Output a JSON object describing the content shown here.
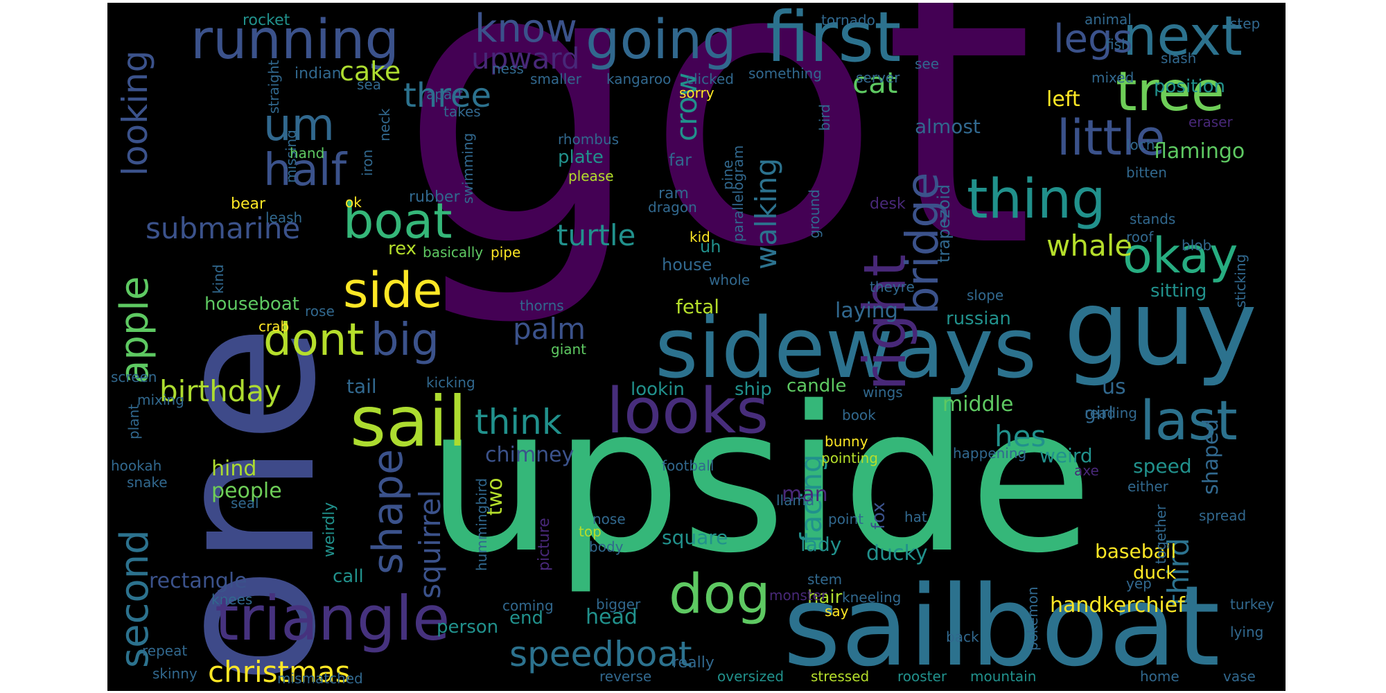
{
  "palette": [
    "#440154",
    "#472d7b",
    "#3b528b",
    "#2c728e",
    "#21918c",
    "#28ae80",
    "#5ec962",
    "#addc30",
    "#fde725"
  ],
  "words": [
    {
      "text": "got",
      "color": "#440154"
    },
    {
      "text": "upside",
      "color": "#35b779"
    },
    {
      "text": "one",
      "color": "#3e4a89"
    },
    {
      "text": "sailboat",
      "color": "#2c728e"
    },
    {
      "text": "guy",
      "color": "#2c728e"
    },
    {
      "text": "sideways",
      "color": "#2c728e"
    },
    {
      "text": "first",
      "color": "#2c728e"
    },
    {
      "text": "going",
      "color": "#31688e"
    },
    {
      "text": "running",
      "color": "#3b528b"
    },
    {
      "text": "next",
      "color": "#2c728e"
    },
    {
      "text": "tree",
      "color": "#6ece58"
    },
    {
      "text": "little",
      "color": "#3b528b"
    },
    {
      "text": "know",
      "color": "#3b528b"
    },
    {
      "text": "legs",
      "color": "#3b528b"
    },
    {
      "text": "thing",
      "color": "#21918c"
    },
    {
      "text": "okay",
      "color": "#27ad81"
    },
    {
      "text": "sail",
      "color": "#addc30"
    },
    {
      "text": "looks",
      "color": "#472d7b"
    },
    {
      "text": "last",
      "color": "#2c728e"
    },
    {
      "text": "triangle",
      "color": "#46327e"
    },
    {
      "text": "dog",
      "color": "#5ec962"
    },
    {
      "text": "boat",
      "color": "#35b779"
    },
    {
      "text": "side",
      "color": "#fde725"
    },
    {
      "text": "dont",
      "color": "#b5de2b"
    },
    {
      "text": "big",
      "color": "#3b528b"
    },
    {
      "text": "half",
      "color": "#3b528b"
    },
    {
      "text": "um",
      "color": "#31688e"
    },
    {
      "text": "three",
      "color": "#2c728e"
    },
    {
      "text": "think",
      "color": "#21918c"
    },
    {
      "text": "speedboat",
      "color": "#2c728e"
    },
    {
      "text": "christmas",
      "color": "#fde725"
    },
    {
      "text": "apple",
      "color": "#5ec962"
    },
    {
      "text": "second",
      "color": "#2c728e"
    },
    {
      "text": "right",
      "color": "#482878"
    },
    {
      "text": "bridge",
      "color": "#3b528b"
    },
    {
      "text": "shape",
      "color": "#3b528b"
    },
    {
      "text": "looking",
      "color": "#3b528b"
    },
    {
      "text": "submarine",
      "color": "#3b528b"
    },
    {
      "text": "birthday",
      "color": "#addc30"
    },
    {
      "text": "upward",
      "color": "#482878"
    },
    {
      "text": "cake",
      "color": "#addc30"
    },
    {
      "text": "cat",
      "color": "#5ec962"
    },
    {
      "text": "turtle",
      "color": "#21918c"
    },
    {
      "text": "crow",
      "color": "#21918c"
    },
    {
      "text": "whale",
      "color": "#b5de2b"
    },
    {
      "text": "walking",
      "color": "#2c728e"
    },
    {
      "text": "palm",
      "color": "#3b528b"
    },
    {
      "text": "facing",
      "color": "#21918c"
    },
    {
      "text": "hes",
      "color": "#21918c"
    },
    {
      "text": "third",
      "color": "#2c728e"
    },
    {
      "text": "shaped",
      "color": "#31688e"
    },
    {
      "text": "squirrel",
      "color": "#3b528b"
    },
    {
      "text": "chimney",
      "color": "#3b528b"
    },
    {
      "text": "rectangle",
      "color": "#3b528b"
    },
    {
      "text": "houseboat",
      "color": "#5ec962"
    },
    {
      "text": "handkerchief",
      "color": "#fde725"
    },
    {
      "text": "baseball",
      "color": "#fde725"
    },
    {
      "text": "flamingo",
      "color": "#5ec962"
    },
    {
      "text": "left",
      "color": "#fde725"
    },
    {
      "text": "position",
      "color": "#21918c"
    },
    {
      "text": "almost",
      "color": "#31688e"
    },
    {
      "text": "sitting",
      "color": "#21918c"
    },
    {
      "text": "russian",
      "color": "#21918c"
    },
    {
      "text": "middle",
      "color": "#5ec962"
    },
    {
      "text": "weird",
      "color": "#21918c"
    },
    {
      "text": "speed",
      "color": "#21918c"
    },
    {
      "text": "ducky",
      "color": "#21918c"
    },
    {
      "text": "lady",
      "color": "#21918c"
    },
    {
      "text": "square",
      "color": "#21918c"
    },
    {
      "text": "head",
      "color": "#21918c"
    },
    {
      "text": "two",
      "color": "#b5de2b"
    },
    {
      "text": "people",
      "color": "#6ece58"
    },
    {
      "text": "hind",
      "color": "#addc30"
    },
    {
      "text": "person",
      "color": "#21918c"
    },
    {
      "text": "end",
      "color": "#21918c"
    },
    {
      "text": "laying",
      "color": "#31688e"
    },
    {
      "text": "fetal",
      "color": "#b5de2b"
    },
    {
      "text": "tail",
      "color": "#31688e"
    },
    {
      "text": "lookin",
      "color": "#21918c"
    },
    {
      "text": "ship",
      "color": "#21918c"
    },
    {
      "text": "candle",
      "color": "#5ec962"
    },
    {
      "text": "us",
      "color": "#31688e"
    },
    {
      "text": "girl",
      "color": "#31688e"
    },
    {
      "text": "man",
      "color": "#482878"
    },
    {
      "text": "fox",
      "color": "#3b528b"
    },
    {
      "text": "duck",
      "color": "#fde725"
    },
    {
      "text": "call",
      "color": "#21918c"
    },
    {
      "text": "hair",
      "color": "#addc30"
    },
    {
      "text": "rex",
      "color": "#b5de2b"
    },
    {
      "text": "uh",
      "color": "#21918c"
    },
    {
      "text": "house",
      "color": "#31688e"
    },
    {
      "text": "plate",
      "color": "#21918c"
    },
    {
      "text": "far",
      "color": "#31688e"
    },
    {
      "text": "ram",
      "color": "#31688e"
    },
    {
      "text": "rubber",
      "color": "#31688e"
    },
    {
      "text": "rhombus",
      "color": "#31688e"
    },
    {
      "text": "please",
      "color": "#b5de2b"
    },
    {
      "text": "dragon",
      "color": "#31688e"
    },
    {
      "text": "desk",
      "color": "#482878"
    },
    {
      "text": "trapezoid",
      "color": "#31688e"
    },
    {
      "text": "kneeling",
      "color": "#31688e"
    },
    {
      "text": "knees",
      "color": "#31688e"
    },
    {
      "text": "weirdly",
      "color": "#21918c"
    },
    {
      "text": "picture",
      "color": "#482878"
    },
    {
      "text": "nose",
      "color": "#31688e"
    },
    {
      "text": "body",
      "color": "#31688e"
    },
    {
      "text": "top",
      "color": "#b5de2b"
    },
    {
      "text": "coming",
      "color": "#31688e"
    },
    {
      "text": "bigger",
      "color": "#31688e"
    },
    {
      "text": "really",
      "color": "#31688e"
    },
    {
      "text": "reverse",
      "color": "#31688e"
    },
    {
      "text": "mismatched",
      "color": "#31688e"
    },
    {
      "text": "skinny",
      "color": "#31688e"
    },
    {
      "text": "repeat",
      "color": "#31688e"
    },
    {
      "text": "oversized",
      "color": "#21918c"
    },
    {
      "text": "stressed",
      "color": "#b5de2b"
    },
    {
      "text": "rooster",
      "color": "#21918c"
    },
    {
      "text": "mountain",
      "color": "#21918c"
    },
    {
      "text": "home",
      "color": "#31688e"
    },
    {
      "text": "vase",
      "color": "#31688e"
    },
    {
      "text": "lying",
      "color": "#31688e"
    },
    {
      "text": "turkey",
      "color": "#31688e"
    },
    {
      "text": "yep",
      "color": "#31688e"
    },
    {
      "text": "spread",
      "color": "#31688e"
    },
    {
      "text": "either",
      "color": "#31688e"
    },
    {
      "text": "axe",
      "color": "#482878"
    },
    {
      "text": "happening",
      "color": "#31688e"
    },
    {
      "text": "reading",
      "color": "#31688e"
    },
    {
      "text": "wings",
      "color": "#31688e"
    },
    {
      "text": "pointing",
      "color": "#b5de2b"
    },
    {
      "text": "bunny",
      "color": "#fde725"
    },
    {
      "text": "book",
      "color": "#31688e"
    },
    {
      "text": "football",
      "color": "#31688e"
    },
    {
      "text": "llama",
      "color": "#31688e"
    },
    {
      "text": "point",
      "color": "#31688e"
    },
    {
      "text": "hat",
      "color": "#31688e"
    },
    {
      "text": "stem",
      "color": "#31688e"
    },
    {
      "text": "say",
      "color": "#fde725"
    },
    {
      "text": "back",
      "color": "#31688e"
    },
    {
      "text": "monster",
      "color": "#482878"
    },
    {
      "text": "pokemon",
      "color": "#31688e"
    },
    {
      "text": "together",
      "color": "#31688e"
    },
    {
      "text": "hummingbird",
      "color": "#31688e"
    },
    {
      "text": "kicking",
      "color": "#31688e"
    },
    {
      "text": "giant",
      "color": "#5ec962"
    },
    {
      "text": "thorns",
      "color": "#31688e"
    },
    {
      "text": "theyre",
      "color": "#31688e"
    },
    {
      "text": "slope",
      "color": "#31688e"
    },
    {
      "text": "whole",
      "color": "#31688e"
    },
    {
      "text": "roof",
      "color": "#31688e"
    },
    {
      "text": "blob",
      "color": "#31688e"
    },
    {
      "text": "sticking",
      "color": "#31688e"
    },
    {
      "text": "stands",
      "color": "#31688e"
    },
    {
      "text": "bitten",
      "color": "#31688e"
    },
    {
      "text": "loch",
      "color": "#31688e"
    },
    {
      "text": "eraser",
      "color": "#482878"
    },
    {
      "text": "mixed",
      "color": "#31688e"
    },
    {
      "text": "slash",
      "color": "#31688e"
    },
    {
      "text": "step",
      "color": "#31688e"
    },
    {
      "text": "fish",
      "color": "#31688e"
    },
    {
      "text": "animal",
      "color": "#31688e"
    },
    {
      "text": "see",
      "color": "#31688e"
    },
    {
      "text": "server",
      "color": "#31688e"
    },
    {
      "text": "tornado",
      "color": "#31688e"
    },
    {
      "text": "something",
      "color": "#31688e"
    },
    {
      "text": "sorry",
      "color": "#fde725"
    },
    {
      "text": "clicked",
      "color": "#31688e"
    },
    {
      "text": "kangaroo",
      "color": "#31688e"
    },
    {
      "text": "smaller",
      "color": "#31688e"
    },
    {
      "text": "ness",
      "color": "#31688e"
    },
    {
      "text": "takes",
      "color": "#31688e"
    },
    {
      "text": "apart",
      "color": "#31688e"
    },
    {
      "text": "sea",
      "color": "#31688e"
    },
    {
      "text": "indian",
      "color": "#31688e"
    },
    {
      "text": "rocket",
      "color": "#21918c"
    },
    {
      "text": "straight",
      "color": "#31688e"
    },
    {
      "text": "missing",
      "color": "#31688e"
    },
    {
      "text": "hand",
      "color": "#5ec962"
    },
    {
      "text": "iron",
      "color": "#31688e"
    },
    {
      "text": "neck",
      "color": "#31688e"
    },
    {
      "text": "swimming",
      "color": "#31688e"
    },
    {
      "text": "bear",
      "color": "#fde725"
    },
    {
      "text": "leash",
      "color": "#31688e"
    },
    {
      "text": "ok",
      "color": "#fde725"
    },
    {
      "text": "basically",
      "color": "#5ec962"
    },
    {
      "text": "pipe",
      "color": "#fde725"
    },
    {
      "text": "kind",
      "color": "#31688e"
    },
    {
      "text": "rose",
      "color": "#31688e"
    },
    {
      "text": "crab",
      "color": "#fde725"
    },
    {
      "text": "screen",
      "color": "#31688e"
    },
    {
      "text": "plant",
      "color": "#31688e"
    },
    {
      "text": "mixing",
      "color": "#31688e"
    },
    {
      "text": "hookah",
      "color": "#31688e"
    },
    {
      "text": "snake",
      "color": "#31688e"
    },
    {
      "text": "seal",
      "color": "#31688e"
    },
    {
      "text": "pine",
      "color": "#31688e"
    },
    {
      "text": "parallelogram",
      "color": "#31688e"
    },
    {
      "text": "ground",
      "color": "#31688e"
    },
    {
      "text": "kid",
      "color": "#fde725"
    },
    {
      "text": "bird",
      "color": "#31688e"
    }
  ]
}
